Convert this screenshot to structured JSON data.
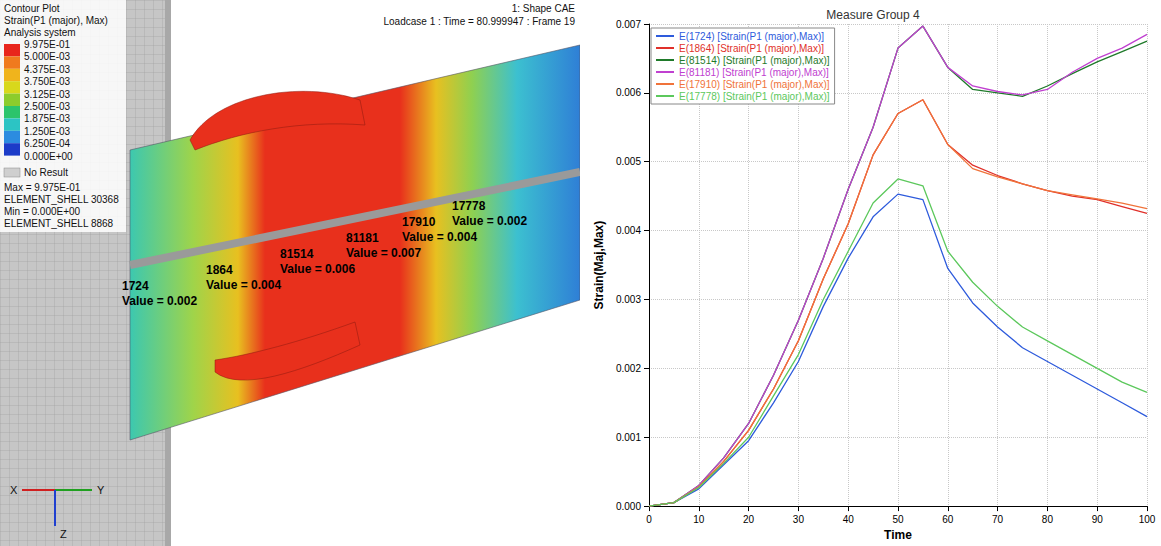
{
  "chart_data": {
    "type": "line",
    "title": "Measure Group 4",
    "x_label": "Time",
    "y_label": "Strain(Maj,Max)",
    "x": [
      0,
      5,
      10,
      15,
      20,
      25,
      30,
      35,
      40,
      45,
      50,
      55,
      60,
      65,
      70,
      75,
      80,
      85,
      90,
      95,
      100
    ],
    "series": [
      {
        "name": "E(1724) [Strain(P1 (major),Max)]",
        "color": "#2e5bdc",
        "values": [
          0,
          5e-05,
          0.00025,
          0.0006,
          0.00095,
          0.0015,
          0.0021,
          0.0029,
          0.0036,
          0.0042,
          0.00453,
          0.00445,
          0.00345,
          0.00295,
          0.0026,
          0.0023,
          0.0021,
          0.0019,
          0.0017,
          0.0015,
          0.0013
        ]
      },
      {
        "name": "E(1864) [Strain(P1 (major),Max)]",
        "color": "#e0302a",
        "values": [
          0,
          5e-05,
          0.00028,
          0.00065,
          0.0011,
          0.0017,
          0.0024,
          0.0033,
          0.0041,
          0.0051,
          0.0057,
          0.0059,
          0.00525,
          0.00495,
          0.0048,
          0.00468,
          0.00458,
          0.0045,
          0.00445,
          0.00435,
          0.00425
        ]
      },
      {
        "name": "E(81514) [Strain(P1 (major),Max)]",
        "color": "#1f7a2a",
        "values": [
          0,
          5e-05,
          0.0003,
          0.0007,
          0.0012,
          0.0019,
          0.0027,
          0.0036,
          0.0046,
          0.0055,
          0.00665,
          0.00697,
          0.00637,
          0.00605,
          0.006,
          0.00595,
          0.0061,
          0.00628,
          0.00645,
          0.0066,
          0.00675
        ]
      },
      {
        "name": "E(81181) [Strain(P1 (major),Max)]",
        "color": "#c040d0",
        "values": [
          0,
          5e-05,
          0.0003,
          0.0007,
          0.0012,
          0.0019,
          0.0027,
          0.0036,
          0.0046,
          0.0055,
          0.00665,
          0.00697,
          0.00637,
          0.0061,
          0.00602,
          0.00597,
          0.00605,
          0.0063,
          0.0065,
          0.00665,
          0.00685
        ]
      },
      {
        "name": "E(17910) [Strain(P1 (major),Max)]",
        "color": "#f0733a",
        "values": [
          0,
          5e-05,
          0.00028,
          0.00065,
          0.0011,
          0.0017,
          0.0024,
          0.0033,
          0.0041,
          0.0051,
          0.0057,
          0.0059,
          0.00525,
          0.0049,
          0.00478,
          0.00468,
          0.00458,
          0.00452,
          0.00446,
          0.0044,
          0.00432
        ]
      },
      {
        "name": "E(17778) [Strain(P1 (major),Max)]",
        "color": "#5cc85c",
        "values": [
          0,
          5e-05,
          0.00027,
          0.00062,
          0.001,
          0.0016,
          0.0022,
          0.003,
          0.0037,
          0.0044,
          0.00475,
          0.00465,
          0.0037,
          0.00325,
          0.0029,
          0.0026,
          0.0024,
          0.0022,
          0.002,
          0.0018,
          0.00165
        ]
      }
    ],
    "xlim": [
      0,
      100
    ],
    "xticks": [
      0,
      10,
      20,
      30,
      40,
      50,
      60,
      70,
      80,
      90,
      100
    ],
    "ylim": [
      0,
      0.007
    ],
    "yticks": [
      {
        "value": 0,
        "label": "0.000"
      },
      0.001,
      0.002,
      0.003,
      0.004,
      0.005,
      0.006,
      0.007
    ],
    "grid": true,
    "legend": "upper left"
  },
  "contour_panel": {
    "header": [
      "Contour Plot",
      "Strain(P1 (major), Max)",
      "Analysis system"
    ],
    "legend_labels": [
      "9.975E-01",
      "5.000E-03",
      "4.375E-03",
      "3.750E-03",
      "3.125E-03",
      "2.500E-03",
      "1.875E-03",
      "1.250E-03",
      "6.250E-04",
      "0.000E+00"
    ],
    "no_result": "No Result",
    "extremes": [
      "Max = 9.975E-01",
      "ELEMENT_SHELL 30368",
      "Min = 0.000E+00",
      "ELEMENT_SHELL 8868"
    ],
    "model": "1: Shape CAE",
    "loadcase": "Loadcase 1 : Time = 80.999947 : Frame 19",
    "elements": [
      {
        "id": "1724",
        "label": "Value = 0.002"
      },
      {
        "id": "1864",
        "label": "Value = 0.004"
      },
      {
        "id": "81514",
        "label": "Value = 0.006"
      },
      {
        "id": "81181",
        "label": "Value = 0.007"
      },
      {
        "id": "17910",
        "label": "Value = 0.004"
      },
      {
        "id": "17778",
        "label": "Value = 0.002"
      }
    ],
    "axes": [
      "X",
      "Y",
      "Z"
    ]
  }
}
